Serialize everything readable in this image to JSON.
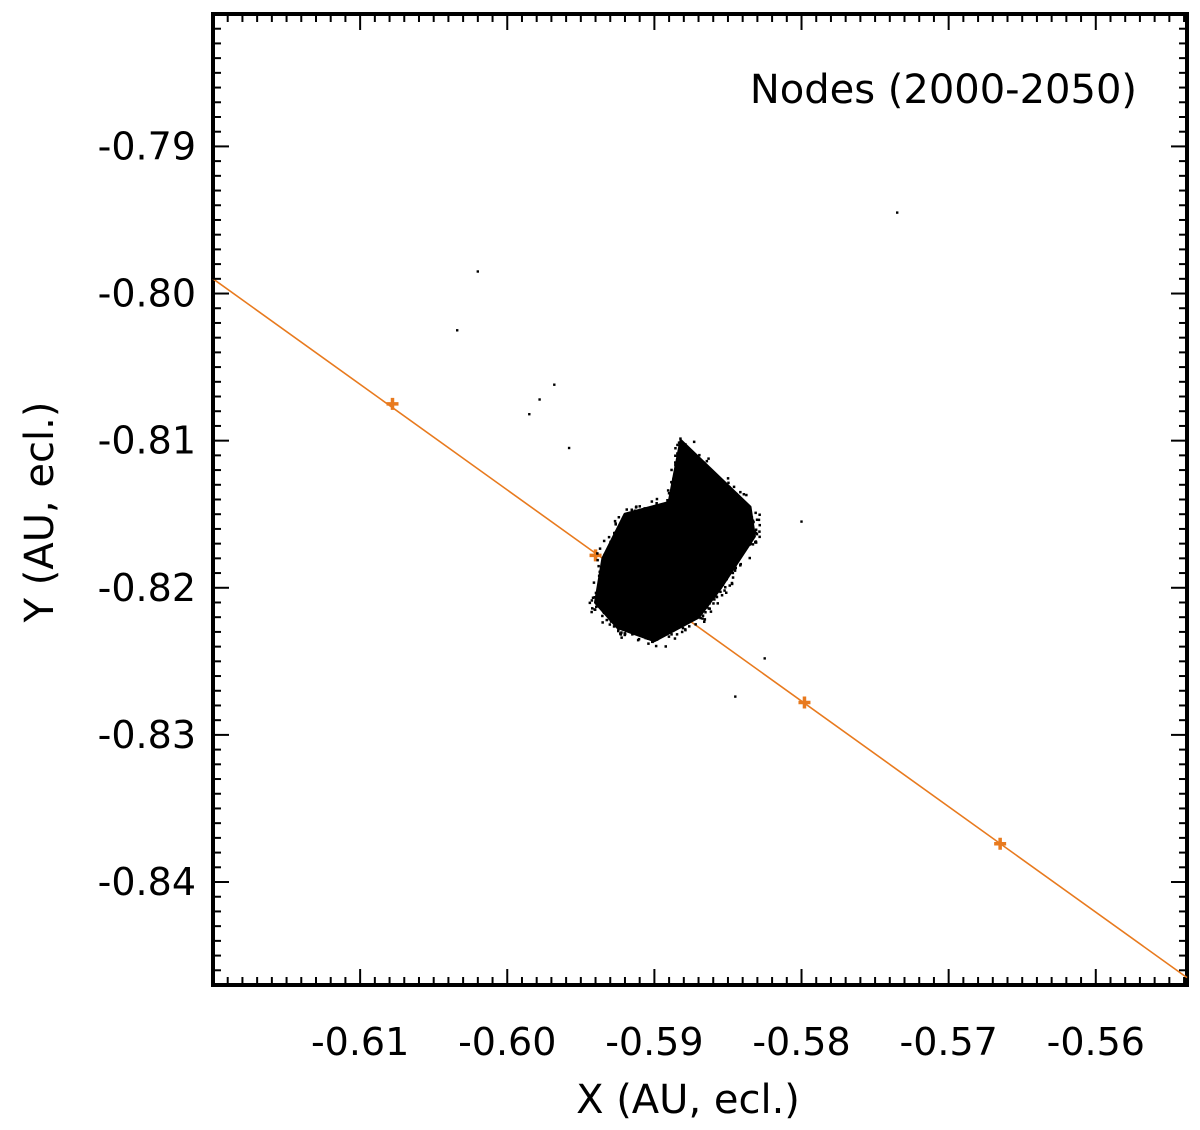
{
  "chart_data": {
    "type": "scatter",
    "title": "Nodes (2000-2050)",
    "xlabel": "X (AU, ecl.)",
    "ylabel": "Y (AU, ecl.)",
    "xlim": [
      -0.62,
      -0.5538
    ],
    "ylim": [
      -0.847,
      -0.781
    ],
    "x_ticks": [
      -0.61,
      -0.6,
      -0.59,
      -0.58,
      -0.57,
      -0.56
    ],
    "x_tick_labels": [
      "-0.61",
      "-0.60",
      "-0.59",
      "-0.58",
      "-0.57",
      "-0.56"
    ],
    "y_ticks": [
      -0.79,
      -0.8,
      -0.81,
      -0.82,
      -0.83,
      -0.84
    ],
    "y_tick_labels": [
      "-0.79",
      "-0.80",
      "-0.81",
      "-0.82",
      "-0.83",
      "-0.84"
    ],
    "grid": false,
    "colors": {
      "cloud": "#000000",
      "orbit": "#E87A1E"
    },
    "series": [
      {
        "kind": "line",
        "color": "#E87A1E",
        "x": [
          -0.62,
          -0.5538
        ],
        "y": [
          -0.799,
          -0.8465
        ]
      },
      {
        "kind": "markers",
        "color": "#E87A1E",
        "x": [
          -0.6078,
          -0.594,
          -0.5798,
          -0.5665
        ],
        "y": [
          -0.8075,
          -0.8178,
          -0.8278,
          -0.8374
        ]
      },
      {
        "kind": "cloud",
        "color": "#000000",
        "polygon_x": [
          -0.589,
          -0.5882,
          -0.5835,
          -0.5832,
          -0.5855,
          -0.587,
          -0.59,
          -0.5925,
          -0.594,
          -0.5935,
          -0.592
        ],
        "polygon_y": [
          -0.8142,
          -0.81,
          -0.8145,
          -0.8165,
          -0.82,
          -0.822,
          -0.8236,
          -0.8227,
          -0.821,
          -0.818,
          -0.815
        ]
      },
      {
        "kind": "points",
        "color": "#000000",
        "x": [
          -0.5735,
          -0.602,
          -0.6034,
          -0.5968,
          -0.5978,
          -0.5985,
          -0.5958,
          -0.58,
          -0.5825,
          -0.5845
        ],
        "y": [
          -0.7945,
          -0.7985,
          -0.8025,
          -0.8062,
          -0.8072,
          -0.8082,
          -0.8105,
          -0.8155,
          -0.8248,
          -0.8274
        ]
      }
    ]
  }
}
